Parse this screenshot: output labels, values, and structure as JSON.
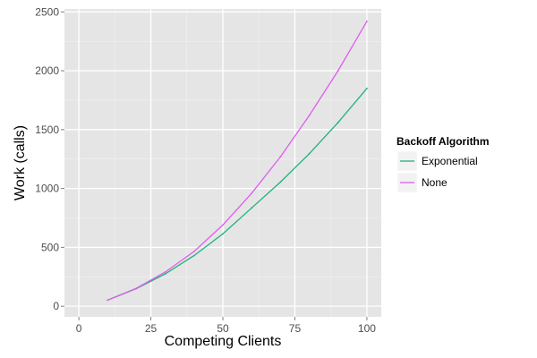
{
  "chart_data": {
    "type": "line",
    "xlabel": "Competing Clients",
    "ylabel": "Work (calls)",
    "xlim": [
      -5,
      105
    ],
    "ylim": [
      -90,
      2525
    ],
    "xticks": [
      0,
      25,
      50,
      75,
      100
    ],
    "yticks": [
      0,
      500,
      1000,
      1500,
      2000,
      2500
    ],
    "x": [
      10,
      20,
      30,
      40,
      50,
      60,
      70,
      80,
      90,
      100
    ],
    "grid": true,
    "legend": {
      "title": "Backoff Algorithm",
      "position": "right"
    },
    "series": [
      {
        "name": "Exponential",
        "color": "#1fb37a",
        "values": [
          52,
          150,
          275,
          430,
          615,
          835,
          1055,
          1295,
          1560,
          1850
        ]
      },
      {
        "name": "None",
        "color": "#e05cf0",
        "values": [
          52,
          153,
          290,
          465,
          690,
          960,
          1270,
          1620,
          2000,
          2420
        ]
      }
    ],
    "panel_color": "#e5e5e5"
  }
}
